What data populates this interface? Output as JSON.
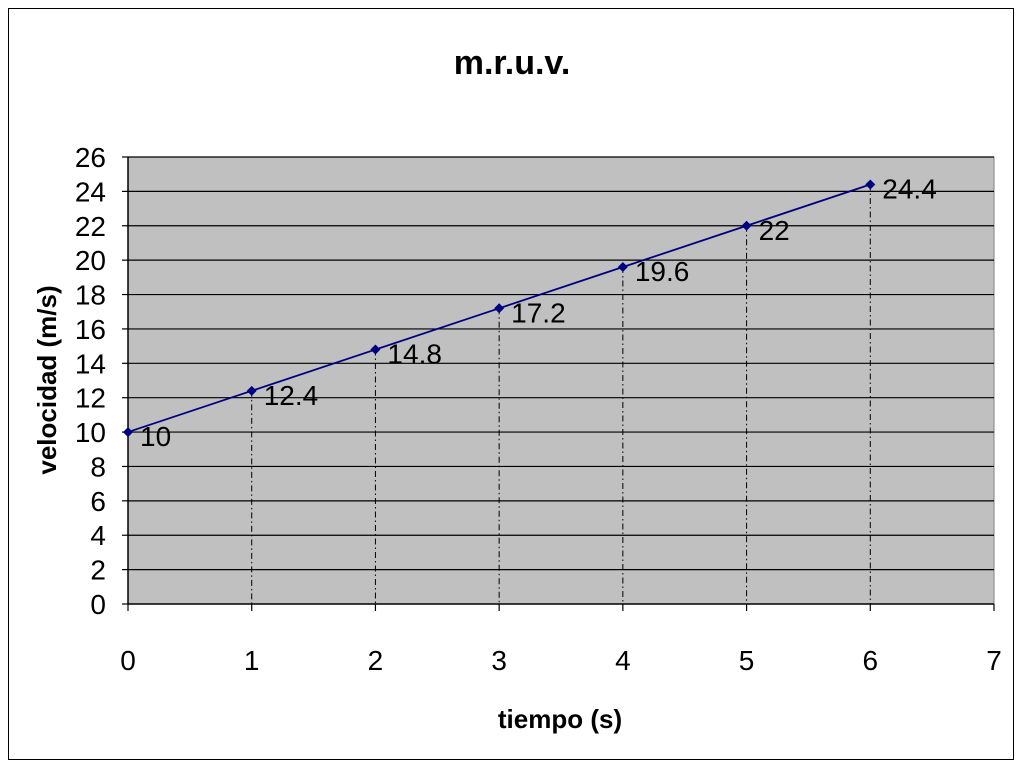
{
  "chart_data": {
    "type": "scatter",
    "title": "m.r.u.v.",
    "xlabel": "tiempo (s)",
    "ylabel": "velocidad (m/s)",
    "x": [
      0,
      1,
      2,
      3,
      4,
      5,
      6
    ],
    "series": [
      {
        "values": [
          10,
          12.4,
          14.8,
          17.2,
          19.6,
          22,
          24.4
        ],
        "color": "#000080"
      }
    ],
    "data_labels": [
      "10",
      "12.4",
      "14.8",
      "17.2",
      "19.6",
      "22",
      "24.4"
    ],
    "xlim": [
      0,
      7
    ],
    "ylim": [
      0,
      26
    ],
    "x_ticks": [
      "0",
      "1",
      "2",
      "3",
      "4",
      "5",
      "6",
      "7"
    ],
    "y_ticks": [
      "0",
      "2",
      "4",
      "6",
      "8",
      "10",
      "12",
      "14",
      "16",
      "18",
      "20",
      "22",
      "24",
      "26"
    ],
    "grid": "horizontal",
    "plot_background": "#c0c0c0",
    "drop_lines": "dash-dot to x-axis",
    "marker": "diamond",
    "legend": "none"
  }
}
